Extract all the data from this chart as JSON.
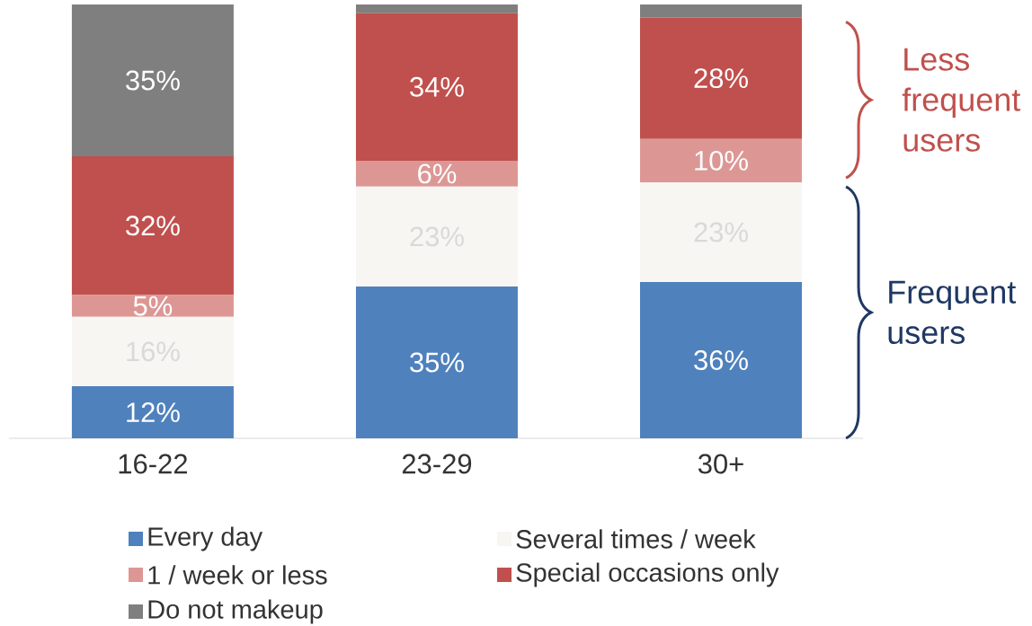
{
  "chart_data": {
    "type": "bar",
    "stacked": true,
    "legend": "bottom",
    "categories": [
      "16-22",
      "23-29",
      "30+"
    ],
    "series": [
      {
        "name": "Every day",
        "color": "#4f81bd",
        "values": [
          12,
          35,
          36
        ],
        "value_labels": [
          "12%",
          "35%",
          "36%"
        ]
      },
      {
        "name": "Several times / week",
        "color": "#f7f6f2",
        "values": [
          16,
          23,
          23
        ],
        "value_labels": [
          "16%",
          "23%",
          "23%"
        ]
      },
      {
        "name": "1 / week or less",
        "color": "#dc9795",
        "values": [
          5,
          6,
          10
        ],
        "value_labels": [
          "5%",
          "6%",
          "10%"
        ]
      },
      {
        "name": "Special occasions only",
        "color": "#c0504d",
        "values": [
          32,
          34,
          28
        ],
        "value_labels": [
          "32%",
          "34%",
          "28%"
        ]
      },
      {
        "name": "Do not makeup",
        "color": "#7f7f7f",
        "values": [
          35,
          2,
          3
        ],
        "value_labels": [
          "35%",
          null,
          null
        ]
      }
    ],
    "annotations": [
      "Less frequent users",
      "Frequent users"
    ]
  }
}
